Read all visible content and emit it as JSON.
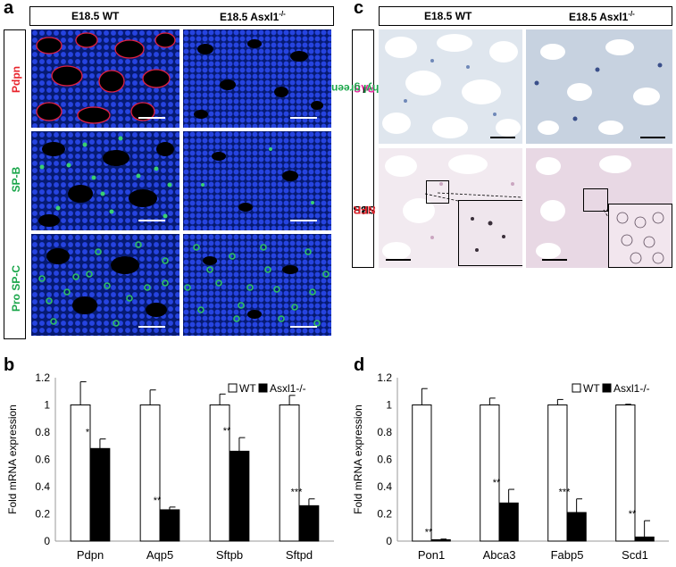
{
  "panel_a": {
    "letter": "a",
    "col_headers": [
      "E18.5 WT",
      "E18.5 Asxl1"
    ],
    "col_header_sup": "-/-",
    "row_labels": [
      "Pdpn",
      "SP-B",
      "Pro SP-C"
    ],
    "row_label_colors": [
      "#e8242c",
      "#1aa64a",
      "#1aa64a"
    ]
  },
  "panel_c": {
    "letter": "c",
    "col_headers": [
      "E18.5 WT",
      "E18.5 Asxl1"
    ],
    "col_header_sup": "-/-",
    "row1_label_parts": [
      "PAS",
      "/",
      "Methyl green"
    ],
    "row1_label_colors": [
      "#e8249e",
      "#000000",
      "#1aa64a"
    ],
    "row2_label_parts": [
      "SBB",
      "/",
      "NFR"
    ],
    "row2_label_colors": [
      "#000000",
      "#000000",
      "#e8242c"
    ]
  },
  "chart_data": [
    {
      "panel": "b",
      "type": "bar",
      "categories": [
        "Pdpn",
        "Aqp5",
        "Sftpb",
        "Sftpd"
      ],
      "series": [
        {
          "name": "WT",
          "values": [
            1.0,
            1.0,
            1.0,
            1.0
          ],
          "errors": [
            0.17,
            0.11,
            0.08,
            0.07
          ],
          "color": "#ffffff"
        },
        {
          "name": "Asxl1-/-",
          "values": [
            0.68,
            0.23,
            0.66,
            0.26
          ],
          "errors": [
            0.07,
            0.02,
            0.1,
            0.05
          ],
          "color": "#000000"
        }
      ],
      "significance": [
        "*",
        "**",
        "**",
        "***"
      ],
      "ylabel": "Fold mRNA expression",
      "ylim": [
        0,
        1.2
      ],
      "yticks": [
        "0",
        "0.2",
        "0.4",
        "0.6",
        "0.8",
        "1",
        "1.2"
      ],
      "legend": "top-right"
    },
    {
      "panel": "d",
      "type": "bar",
      "categories": [
        "Pon1",
        "Abca3",
        "Fabp5",
        "Scd1"
      ],
      "series": [
        {
          "name": "WT",
          "values": [
            1.0,
            1.0,
            1.0,
            1.0
          ],
          "errors": [
            0.12,
            0.05,
            0.04,
            0.005
          ],
          "color": "#ffffff"
        },
        {
          "name": "Asxl1-/-",
          "values": [
            0.01,
            0.28,
            0.21,
            0.03
          ],
          "errors": [
            0.005,
            0.1,
            0.1,
            0.12
          ],
          "color": "#000000"
        }
      ],
      "significance": [
        "**",
        "**",
        "***",
        "**"
      ],
      "ylabel": "Fold mRNA expression",
      "ylim": [
        0,
        1.2
      ],
      "yticks": [
        "0",
        "0.2",
        "0.4",
        "0.6",
        "0.8",
        "1",
        "1.2"
      ],
      "legend": "top-right"
    }
  ]
}
